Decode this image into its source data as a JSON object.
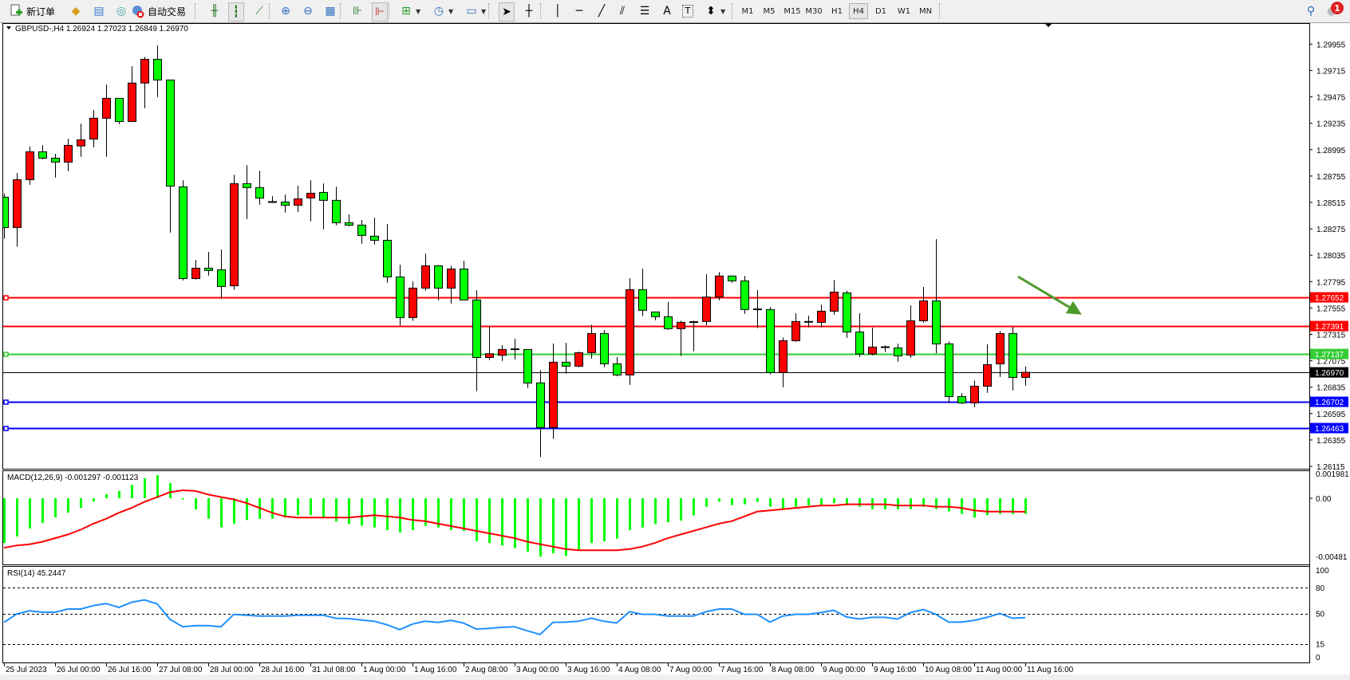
{
  "toolbar": {
    "new_order_label": "新订单",
    "auto_trading_label": "自动交易",
    "icons": [
      "new-order-icon",
      "market-watch-icon",
      "navigator-icon",
      "signals-icon",
      "auto-trading-icon",
      "bar-chart-icon",
      "candlestick-icon",
      "line-chart-icon",
      "zoom-in-icon",
      "zoom-out-icon",
      "tile-windows-icon",
      "chart-shift-icon",
      "autoscroll-icon",
      "indicators-icon",
      "periods-icon",
      "templates-icon",
      "cursor-icon",
      "crosshair-icon",
      "vertical-line-icon",
      "horizontal-line-icon",
      "trendline-icon",
      "equidistant-channel-icon",
      "fibonacci-icon",
      "text-icon",
      "text-label-icon",
      "arrows-icon"
    ],
    "text_tool_label": "A",
    "label_tool_label": "T",
    "timeframes": [
      "M1",
      "M5",
      "M15",
      "M30",
      "H1",
      "H4",
      "D1",
      "W1",
      "MN"
    ],
    "active_timeframe": "H4",
    "notification_count": "1"
  },
  "chart": {
    "symbol_header": "GBPUSD-,H4  1.26924 1.27023 1.26849 1.26970",
    "colors": {
      "bull": "#ff0000",
      "bear": "#00ff00",
      "macd_hist": "#00ff00",
      "macd_signal": "#ff0000",
      "rsi": "#1e90ff",
      "arrow": "#4c9a2a"
    },
    "price_axis_labels": [
      "1.29955",
      "1.29715",
      "1.29475",
      "1.29235",
      "1.28995",
      "1.28755",
      "1.28515",
      "1.28275",
      "1.28035",
      "1.27795",
      "1.27555",
      "1.27315",
      "1.27075",
      "1.26835",
      "1.26595",
      "1.26355",
      "1.26115"
    ],
    "horizontal_lines": [
      {
        "price": "1.27652",
        "color": "#ff0000"
      },
      {
        "price": "1.27391",
        "color": "#ff0000"
      },
      {
        "price": "1.27137",
        "color": "#33cc33"
      },
      {
        "price": "1.26702",
        "color": "#0000ff"
      },
      {
        "price": "1.26463",
        "color": "#0000ff"
      }
    ],
    "bid_price": "1.26970",
    "candles_ohlc": [
      [
        1.28563,
        1.28596,
        1.28186,
        1.28287
      ],
      [
        1.28287,
        1.28782,
        1.28113,
        1.28722
      ],
      [
        1.28722,
        1.29022,
        1.28676,
        1.28976
      ],
      [
        1.28976,
        1.29036,
        1.28906,
        1.28918
      ],
      [
        1.28918,
        1.28957,
        1.28741,
        1.28882
      ],
      [
        1.28882,
        1.29094,
        1.28799,
        1.29034
      ],
      [
        1.29029,
        1.29232,
        1.2893,
        1.29085
      ],
      [
        1.29092,
        1.29355,
        1.29017,
        1.29281
      ],
      [
        1.29281,
        1.29587,
        1.2893,
        1.29462
      ],
      [
        1.29462,
        1.29462,
        1.29227,
        1.29251
      ],
      [
        1.29251,
        1.29754,
        1.29251,
        1.29601
      ],
      [
        1.29601,
        1.29839,
        1.29372,
        1.29817
      ],
      [
        1.29817,
        1.29943,
        1.29474,
        1.29629
      ],
      [
        1.29629,
        1.29629,
        1.28241,
        1.28664
      ],
      [
        1.28657,
        1.28717,
        1.27806,
        1.27823
      ],
      [
        1.27823,
        1.27992,
        1.27813,
        1.27917
      ],
      [
        1.27917,
        1.28065,
        1.2785,
        1.27896
      ],
      [
        1.27903,
        1.28087,
        1.2764,
        1.27751
      ],
      [
        1.27757,
        1.28766,
        1.27722,
        1.28686
      ],
      [
        1.28686,
        1.28855,
        1.28364,
        1.2865
      ],
      [
        1.2865,
        1.28804,
        1.28495,
        1.28555
      ],
      [
        1.28519,
        1.28572,
        1.28512,
        1.28519
      ],
      [
        1.28519,
        1.28587,
        1.28423,
        1.2849
      ],
      [
        1.2849,
        1.28667,
        1.2843,
        1.28548
      ],
      [
        1.28556,
        1.28717,
        1.28343,
        1.28599
      ],
      [
        1.28606,
        1.28688,
        1.2827,
        1.28534
      ],
      [
        1.28534,
        1.28659,
        1.28307,
        1.28331
      ],
      [
        1.28331,
        1.28406,
        1.28299,
        1.28309
      ],
      [
        1.28309,
        1.28355,
        1.2814,
        1.28215
      ],
      [
        1.28208,
        1.28377,
        1.28133,
        1.28171
      ],
      [
        1.28171,
        1.28319,
        1.27785,
        1.27838
      ],
      [
        1.27838,
        1.27949,
        1.27395,
        1.27468
      ],
      [
        1.27468,
        1.27797,
        1.27439,
        1.27736
      ],
      [
        1.27736,
        1.2805,
        1.27712,
        1.27939
      ],
      [
        1.27939,
        1.27946,
        1.27625,
        1.27736
      ],
      [
        1.27736,
        1.27939,
        1.27596,
        1.2791
      ],
      [
        1.2791,
        1.27985,
        1.27628,
        1.27628
      ],
      [
        1.27628,
        1.27717,
        1.26798,
        1.27105
      ],
      [
        1.27105,
        1.27388,
        1.27081,
        1.27139
      ],
      [
        1.27125,
        1.27217,
        1.27074,
        1.27178
      ],
      [
        1.27178,
        1.27275,
        1.27088,
        1.2718
      ],
      [
        1.27178,
        1.27178,
        1.26827,
        1.26873
      ],
      [
        1.26874,
        1.2699,
        1.262,
        1.26468
      ],
      [
        1.26468,
        1.27232,
        1.26364,
        1.27062
      ],
      [
        1.27062,
        1.27239,
        1.26958,
        1.27026
      ],
      [
        1.27026,
        1.27157,
        1.27017,
        1.27149
      ],
      [
        1.27149,
        1.27403,
        1.27096,
        1.27323
      ],
      [
        1.27323,
        1.27355,
        1.27017,
        1.27048
      ],
      [
        1.27048,
        1.27108,
        1.26934,
        1.26946
      ],
      [
        1.26946,
        1.27826,
        1.26855,
        1.27722
      ],
      [
        1.27722,
        1.27913,
        1.27481,
        1.27534
      ],
      [
        1.27519,
        1.27519,
        1.27444,
        1.27476
      ],
      [
        1.27476,
        1.27609,
        1.27357,
        1.27367
      ],
      [
        1.27367,
        1.27439,
        1.27118,
        1.27425
      ],
      [
        1.27425,
        1.27439,
        1.27162,
        1.27427
      ],
      [
        1.27432,
        1.27862,
        1.27398,
        1.27655
      ],
      [
        1.27655,
        1.27882,
        1.27626,
        1.27846
      ],
      [
        1.27846,
        1.27846,
        1.27785,
        1.27802
      ],
      [
        1.27802,
        1.27848,
        1.27502,
        1.27541
      ],
      [
        1.27541,
        1.27717,
        1.27372,
        1.27543
      ],
      [
        1.27541,
        1.27563,
        1.26951,
        1.26968
      ],
      [
        1.26968,
        1.27287,
        1.26835,
        1.27258
      ],
      [
        1.27258,
        1.27507,
        1.27248,
        1.27432
      ],
      [
        1.27427,
        1.27485,
        1.27379,
        1.27429
      ],
      [
        1.27424,
        1.27586,
        1.27379,
        1.27526
      ],
      [
        1.27526,
        1.27811,
        1.27495,
        1.277
      ],
      [
        1.27693,
        1.27714,
        1.27284,
        1.27337
      ],
      [
        1.27337,
        1.27507,
        1.2711,
        1.27137
      ],
      [
        1.27137,
        1.27376,
        1.27125,
        1.272
      ],
      [
        1.27197,
        1.27214,
        1.27154,
        1.27199
      ],
      [
        1.27192,
        1.27231,
        1.27067,
        1.2712
      ],
      [
        1.27127,
        1.27579,
        1.27103,
        1.27439
      ],
      [
        1.27439,
        1.27746,
        1.27422,
        1.2762
      ],
      [
        1.2762,
        1.28181,
        1.27144,
        1.27229
      ],
      [
        1.27229,
        1.2725,
        1.2669,
        1.2675
      ],
      [
        1.2675,
        1.26779,
        1.26682,
        1.26692
      ],
      [
        1.26692,
        1.26895,
        1.26653,
        1.26844
      ],
      [
        1.26844,
        1.27224,
        1.26784,
        1.2704
      ],
      [
        1.27047,
        1.27347,
        1.26929,
        1.27323
      ],
      [
        1.27323,
        1.27383,
        1.26806,
        1.26924
      ],
      [
        1.26924,
        1.27023,
        1.26849,
        1.2697
      ]
    ],
    "time_labels": [
      {
        "candle": 1,
        "label": "25 Jul 2023"
      },
      {
        "candle": 5,
        "label": "26 Jul 00:00"
      },
      {
        "candle": 9,
        "label": "26 Jul 16:00"
      },
      {
        "candle": 13,
        "label": "27 Jul 08:00"
      },
      {
        "candle": 17,
        "label": "28 Jul 00:00"
      },
      {
        "candle": 21,
        "label": "28 Jul 16:00"
      },
      {
        "candle": 25,
        "label": "31 Jul 08:00"
      },
      {
        "candle": 29,
        "label": "1 Aug 00:00"
      },
      {
        "candle": 33,
        "label": "1 Aug 16:00"
      },
      {
        "candle": 37,
        "label": "2 Aug 08:00"
      },
      {
        "candle": 41,
        "label": "3 Aug 00:00"
      },
      {
        "candle": 45,
        "label": "3 Aug 16:00"
      },
      {
        "candle": 49,
        "label": "4 Aug 08:00"
      },
      {
        "candle": 53,
        "label": "7 Aug 00:00"
      },
      {
        "candle": 57,
        "label": "7 Aug 16:00"
      },
      {
        "candle": 61,
        "label": "8 Aug 08:00"
      },
      {
        "candle": 65,
        "label": "9 Aug 00:00"
      },
      {
        "candle": 69,
        "label": "9 Aug 16:00"
      },
      {
        "candle": 73,
        "label": "10 Aug 08:00"
      },
      {
        "candle": 77,
        "label": "11 Aug 00:00"
      },
      {
        "candle": 81,
        "label": "11 Aug 16:00"
      }
    ]
  },
  "macd": {
    "title": "MACD(12,26,9) -0.001297 -0.001123",
    "axis_labels": [
      "0.001981",
      "0.00",
      "-0.00481"
    ],
    "histogram": [
      -0.0037,
      -0.00316,
      -0.0025,
      -0.00204,
      -0.00158,
      -0.00119,
      -0.00079,
      -0.00026,
      0.00033,
      0.0006,
      0.0011,
      0.00165,
      0.0019,
      0.00125,
      -0.0001,
      -0.00092,
      -0.0017,
      -0.0024,
      -0.0021,
      -0.0018,
      -0.0017,
      -0.0017,
      -0.0016,
      -0.0014,
      -0.0014,
      -0.00156,
      -0.00192,
      -0.00213,
      -0.00228,
      -0.00242,
      -0.00263,
      -0.00284,
      -0.00263,
      -0.00228,
      -0.00242,
      -0.00263,
      -0.0027,
      -0.00356,
      -0.0037,
      -0.00391,
      -0.00412,
      -0.00441,
      -0.00483,
      -0.00455,
      -0.00476,
      -0.00427,
      -0.0037,
      -0.00356,
      -0.00334,
      -0.00263,
      -0.00242,
      -0.00213,
      -0.00199,
      -0.00185,
      -0.00142,
      -0.00071,
      -0.00028,
      -0.00057,
      -0.0005,
      -0.0003,
      -0.0007,
      -0.0009,
      -0.0007,
      -0.0006,
      -0.0006,
      -0.0004,
      -0.0006,
      -0.0007,
      -0.0009,
      -0.0009,
      -0.0009,
      -0.0009,
      -0.0007,
      -0.0009,
      -0.0011,
      -0.0013,
      -0.0016,
      -0.0014,
      -0.0013,
      -0.0013,
      -0.001297
    ],
    "signal": [
      -0.0041,
      -0.0039,
      -0.0038,
      -0.0036,
      -0.0033,
      -0.003,
      -0.0026,
      -0.0021,
      -0.0017,
      -0.0012,
      -0.0008,
      -0.0003,
      0.0001,
      0.0005,
      0.00066,
      0.0006,
      0.0003,
      0.0001,
      -0.0001,
      -0.0004,
      -0.0008,
      -0.0012,
      -0.0015,
      -0.0016,
      -0.0016,
      -0.0016,
      -0.0016,
      -0.0016,
      -0.0015,
      -0.0014,
      -0.0015,
      -0.0016,
      -0.0018,
      -0.0019,
      -0.0021,
      -0.0023,
      -0.0025,
      -0.0027,
      -0.0029,
      -0.0031,
      -0.0033,
      -0.0036,
      -0.0038,
      -0.004,
      -0.0042,
      -0.0043,
      -0.0043,
      -0.0043,
      -0.0043,
      -0.0042,
      -0.004,
      -0.0037,
      -0.0033,
      -0.003,
      -0.0027,
      -0.0024,
      -0.0021,
      -0.0019,
      -0.0015,
      -0.0011,
      -0.001,
      -0.0009,
      -0.0008,
      -0.0007,
      -0.0006,
      -0.0006,
      -0.0005,
      -0.0005,
      -0.0005,
      -0.0005,
      -0.0006,
      -0.0006,
      -0.0006,
      -0.0007,
      -0.0007,
      -0.0008,
      -0.001,
      -0.0011,
      -0.0011,
      -0.0011,
      -0.001123
    ]
  },
  "rsi": {
    "title": "RSI(14) 45.2447",
    "axis_labels": [
      "100",
      "80",
      "50",
      "15",
      "0"
    ],
    "levels": [
      80,
      50,
      15
    ],
    "values": [
      39.7,
      49.4,
      53,
      51.4,
      51.4,
      55,
      55,
      59,
      61.4,
      57,
      62.8,
      65.6,
      61,
      43.3,
      34.7,
      36,
      36,
      34.7,
      48.9,
      48,
      47,
      47,
      47,
      48,
      48,
      48,
      44.4,
      44,
      42.5,
      41,
      37,
      31.4,
      37.8,
      41,
      39.7,
      42,
      38.9,
      32,
      32.8,
      34,
      34.7,
      30,
      25.8,
      39.7,
      40,
      41,
      44.5,
      41,
      39,
      52,
      49,
      49,
      47,
      47,
      47,
      52,
      55,
      55,
      49,
      49,
      40,
      47,
      49,
      49,
      51,
      53.6,
      46,
      43.6,
      45.5,
      45.5,
      43.6,
      51,
      54.5,
      49,
      40,
      40,
      42,
      45.5,
      50,
      44.5,
      45.2447
    ]
  }
}
